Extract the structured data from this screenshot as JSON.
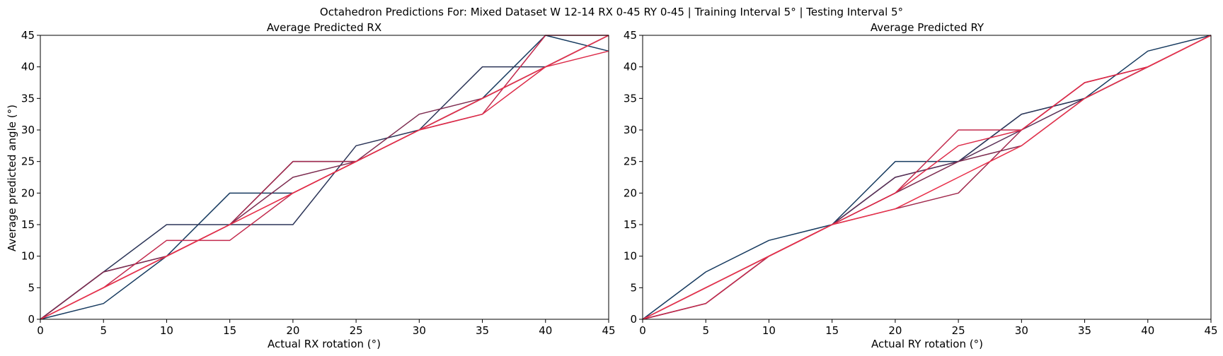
{
  "figure": {
    "suptitle": "Octahedron Predictions For: Mixed Dataset W 12-14 RX 0-45 RY 0-45 | Training Interval 5° | Testing Interval 5°"
  },
  "chart_data": [
    {
      "type": "line",
      "title": "Average Predicted RX",
      "xlabel": "Actual RX rotation (°)",
      "ylabel": "Average predicted angle (°)",
      "xlim": [
        0,
        45
      ],
      "ylim": [
        0,
        45
      ],
      "xticks": [
        "0",
        "5",
        "10",
        "15",
        "20",
        "25",
        "30",
        "35",
        "40",
        "45"
      ],
      "yticks": [
        "0",
        "5",
        "10",
        "15",
        "20",
        "25",
        "30",
        "35",
        "40",
        "45"
      ],
      "grid": false,
      "legend": "none",
      "series": [
        {
          "color": "#163a5f",
          "x": [
            0,
            5,
            10,
            15,
            20,
            25,
            30,
            35,
            40,
            45
          ],
          "y": [
            0,
            2.5,
            10,
            20,
            20,
            25,
            30,
            35,
            45,
            42.5
          ]
        },
        {
          "color": "#2c3558",
          "x": [
            0,
            5,
            10,
            15,
            20,
            25,
            30,
            35,
            40,
            45
          ],
          "y": [
            0,
            7.5,
            15,
            15,
            15,
            27.5,
            30,
            40,
            40,
            45
          ]
        },
        {
          "color": "#5a2f55",
          "x": [
            0,
            5,
            10,
            15,
            20,
            25,
            30,
            35,
            40,
            45
          ],
          "y": [
            0,
            7.5,
            10,
            15,
            25,
            25,
            30,
            35,
            40,
            45
          ]
        },
        {
          "color": "#7d2c50",
          "x": [
            0,
            5,
            10,
            15,
            20,
            25,
            30,
            35,
            40,
            45
          ],
          "y": [
            0,
            7.5,
            10,
            15,
            22.5,
            25,
            32.5,
            35,
            40,
            45
          ]
        },
        {
          "color": "#a1294d",
          "x": [
            0,
            5,
            10,
            15,
            20,
            25,
            30,
            35,
            40,
            45
          ],
          "y": [
            0,
            5,
            10,
            15,
            25,
            25,
            30,
            35,
            40,
            45
          ]
        },
        {
          "color": "#c2294c",
          "x": [
            0,
            5,
            10,
            15,
            20,
            25,
            30,
            35,
            40,
            45
          ],
          "y": [
            0,
            5,
            12.5,
            12.5,
            20,
            25,
            30,
            32.5,
            45,
            45
          ]
        },
        {
          "color": "#dc2a48",
          "x": [
            0,
            5,
            10,
            15,
            20,
            25,
            30,
            35,
            40,
            45
          ],
          "y": [
            0,
            5,
            10,
            15,
            20,
            25,
            30,
            32.5,
            40,
            42.5
          ]
        },
        {
          "color": "#e8304a",
          "x": [
            0,
            5,
            10,
            15,
            20,
            25,
            30,
            35,
            40,
            45
          ],
          "y": [
            0,
            5,
            10,
            15,
            20,
            25,
            30,
            35,
            40,
            45
          ]
        }
      ]
    },
    {
      "type": "line",
      "title": "Average Predicted RY",
      "xlabel": "Actual RY rotation (°)",
      "ylabel": "",
      "xlim": [
        0,
        45
      ],
      "ylim": [
        0,
        45
      ],
      "xticks": [
        "0",
        "5",
        "10",
        "15",
        "20",
        "25",
        "30",
        "35",
        "40",
        "45"
      ],
      "yticks": [
        "0",
        "5",
        "10",
        "15",
        "20",
        "25",
        "30",
        "35",
        "40",
        "45"
      ],
      "grid": false,
      "legend": "none",
      "series": [
        {
          "color": "#163a5f",
          "x": [
            0,
            5,
            10,
            15,
            20,
            25,
            30,
            35,
            40,
            45
          ],
          "y": [
            0,
            7.5,
            12.5,
            15,
            25,
            25,
            32.5,
            35,
            42.5,
            45
          ]
        },
        {
          "color": "#2c3558",
          "x": [
            0,
            5,
            10,
            15,
            20,
            25,
            30,
            35,
            40,
            45
          ],
          "y": [
            0,
            2.5,
            10,
            15,
            22.5,
            25,
            32.5,
            35,
            40,
            45
          ]
        },
        {
          "color": "#5a2f55",
          "x": [
            0,
            5,
            10,
            15,
            20,
            25,
            30,
            35,
            40,
            45
          ],
          "y": [
            0,
            5,
            10,
            15,
            22.5,
            25,
            30,
            35,
            40,
            45
          ]
        },
        {
          "color": "#7d2c50",
          "x": [
            0,
            5,
            10,
            15,
            20,
            25,
            30,
            35,
            40,
            45
          ],
          "y": [
            0,
            5,
            10,
            15,
            20,
            25,
            27.5,
            35,
            40,
            45
          ]
        },
        {
          "color": "#a1294d",
          "x": [
            0,
            5,
            10,
            15,
            20,
            25,
            30,
            35,
            40,
            45
          ],
          "y": [
            0,
            2.5,
            10,
            15,
            17.5,
            20,
            30,
            37.5,
            40,
            45
          ]
        },
        {
          "color": "#c2294c",
          "x": [
            0,
            5,
            10,
            15,
            20,
            25,
            30,
            35,
            40,
            45
          ],
          "y": [
            0,
            2.5,
            10,
            15,
            20,
            30,
            30,
            37.5,
            40,
            45
          ]
        },
        {
          "color": "#dc2a48",
          "x": [
            0,
            5,
            10,
            15,
            20,
            25,
            30,
            35,
            40,
            45
          ],
          "y": [
            0,
            5,
            10,
            15,
            20,
            27.5,
            30,
            37.5,
            40,
            45
          ]
        },
        {
          "color": "#e8304a",
          "x": [
            0,
            5,
            10,
            15,
            20,
            25,
            30,
            35,
            40,
            45
          ],
          "y": [
            0,
            5,
            10,
            15,
            17.5,
            22.5,
            27.5,
            35,
            40,
            45
          ]
        }
      ]
    }
  ]
}
